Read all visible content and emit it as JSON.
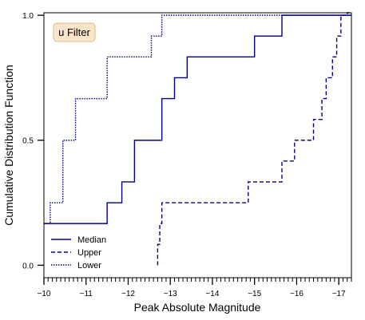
{
  "chart_data": {
    "type": "line",
    "step": "post",
    "xlabel": "Peak Absolute Magnitude",
    "ylabel": "Cumulative Distribution Function",
    "xlim": [
      -10,
      -17.3
    ],
    "ylim": [
      -0.05,
      1.01
    ],
    "x_inverted": true,
    "xticks": [
      -10,
      -11,
      -12,
      -13,
      -14,
      -15,
      -16,
      -17
    ],
    "xtick_labels": [
      "−10",
      "−11",
      "−12",
      "−13",
      "−14",
      "−15",
      "−16",
      "−17"
    ],
    "yticks": [
      0.0,
      0.5,
      1.0
    ],
    "ytick_labels": [
      "0.0",
      "0.5",
      "1.0"
    ],
    "minor_xtick_step": 0.1,
    "grid": false,
    "line_color": "#00008b",
    "annotation": "u Filter",
    "annotation_bg": "#fbe5c8",
    "annotation_border": "#d9b98e",
    "legend": {
      "placement": "lower-left"
    },
    "series": [
      {
        "name": "Median",
        "style": "solid",
        "x": [
          -10,
          -11.5,
          -11.5,
          -11.85,
          -11.85,
          -12.15,
          -12.15,
          -12.8,
          -12.8,
          -13.1,
          -13.1,
          -13.4,
          -13.4,
          -15.0,
          -15.0,
          -15.65,
          -15.65,
          -17.3
        ],
        "y": [
          0.1667,
          0.1667,
          0.25,
          0.25,
          0.3333,
          0.3333,
          0.5,
          0.5,
          0.6667,
          0.6667,
          0.75,
          0.75,
          0.8333,
          0.8333,
          0.9167,
          0.9167,
          1.0,
          1.0
        ]
      },
      {
        "name": "Upper",
        "style": "dashed",
        "x": [
          -12.7,
          -12.7,
          -12.75,
          -12.75,
          -12.8,
          -12.8,
          -14.85,
          -14.85,
          -15.65,
          -15.65,
          -15.95,
          -15.95,
          -16.4,
          -16.4,
          -16.6,
          -16.6,
          -16.7,
          -16.7,
          -16.85,
          -16.85,
          -16.95,
          -16.95,
          -17.05,
          -17.05,
          -17.2,
          -17.2,
          -17.3
        ],
        "y": [
          0.0,
          0.0833,
          0.0833,
          0.1667,
          0.1667,
          0.25,
          0.25,
          0.3333,
          0.3333,
          0.4167,
          0.4167,
          0.5,
          0.5,
          0.5833,
          0.5833,
          0.6667,
          0.6667,
          0.75,
          0.75,
          0.8333,
          0.8333,
          0.9167,
          0.9167,
          1.0,
          1.0,
          1.01,
          1.01
        ]
      },
      {
        "name": "Lower",
        "style": "dotted",
        "x": [
          -10,
          -10.15,
          -10.15,
          -10.45,
          -10.45,
          -10.75,
          -10.75,
          -11.5,
          -11.5,
          -12.55,
          -12.55,
          -12.8,
          -12.8,
          -17.3
        ],
        "y": [
          0.1667,
          0.1667,
          0.25,
          0.25,
          0.5,
          0.5,
          0.6667,
          0.6667,
          0.8333,
          0.8333,
          0.9167,
          0.9167,
          1.0,
          1.0
        ]
      }
    ]
  }
}
